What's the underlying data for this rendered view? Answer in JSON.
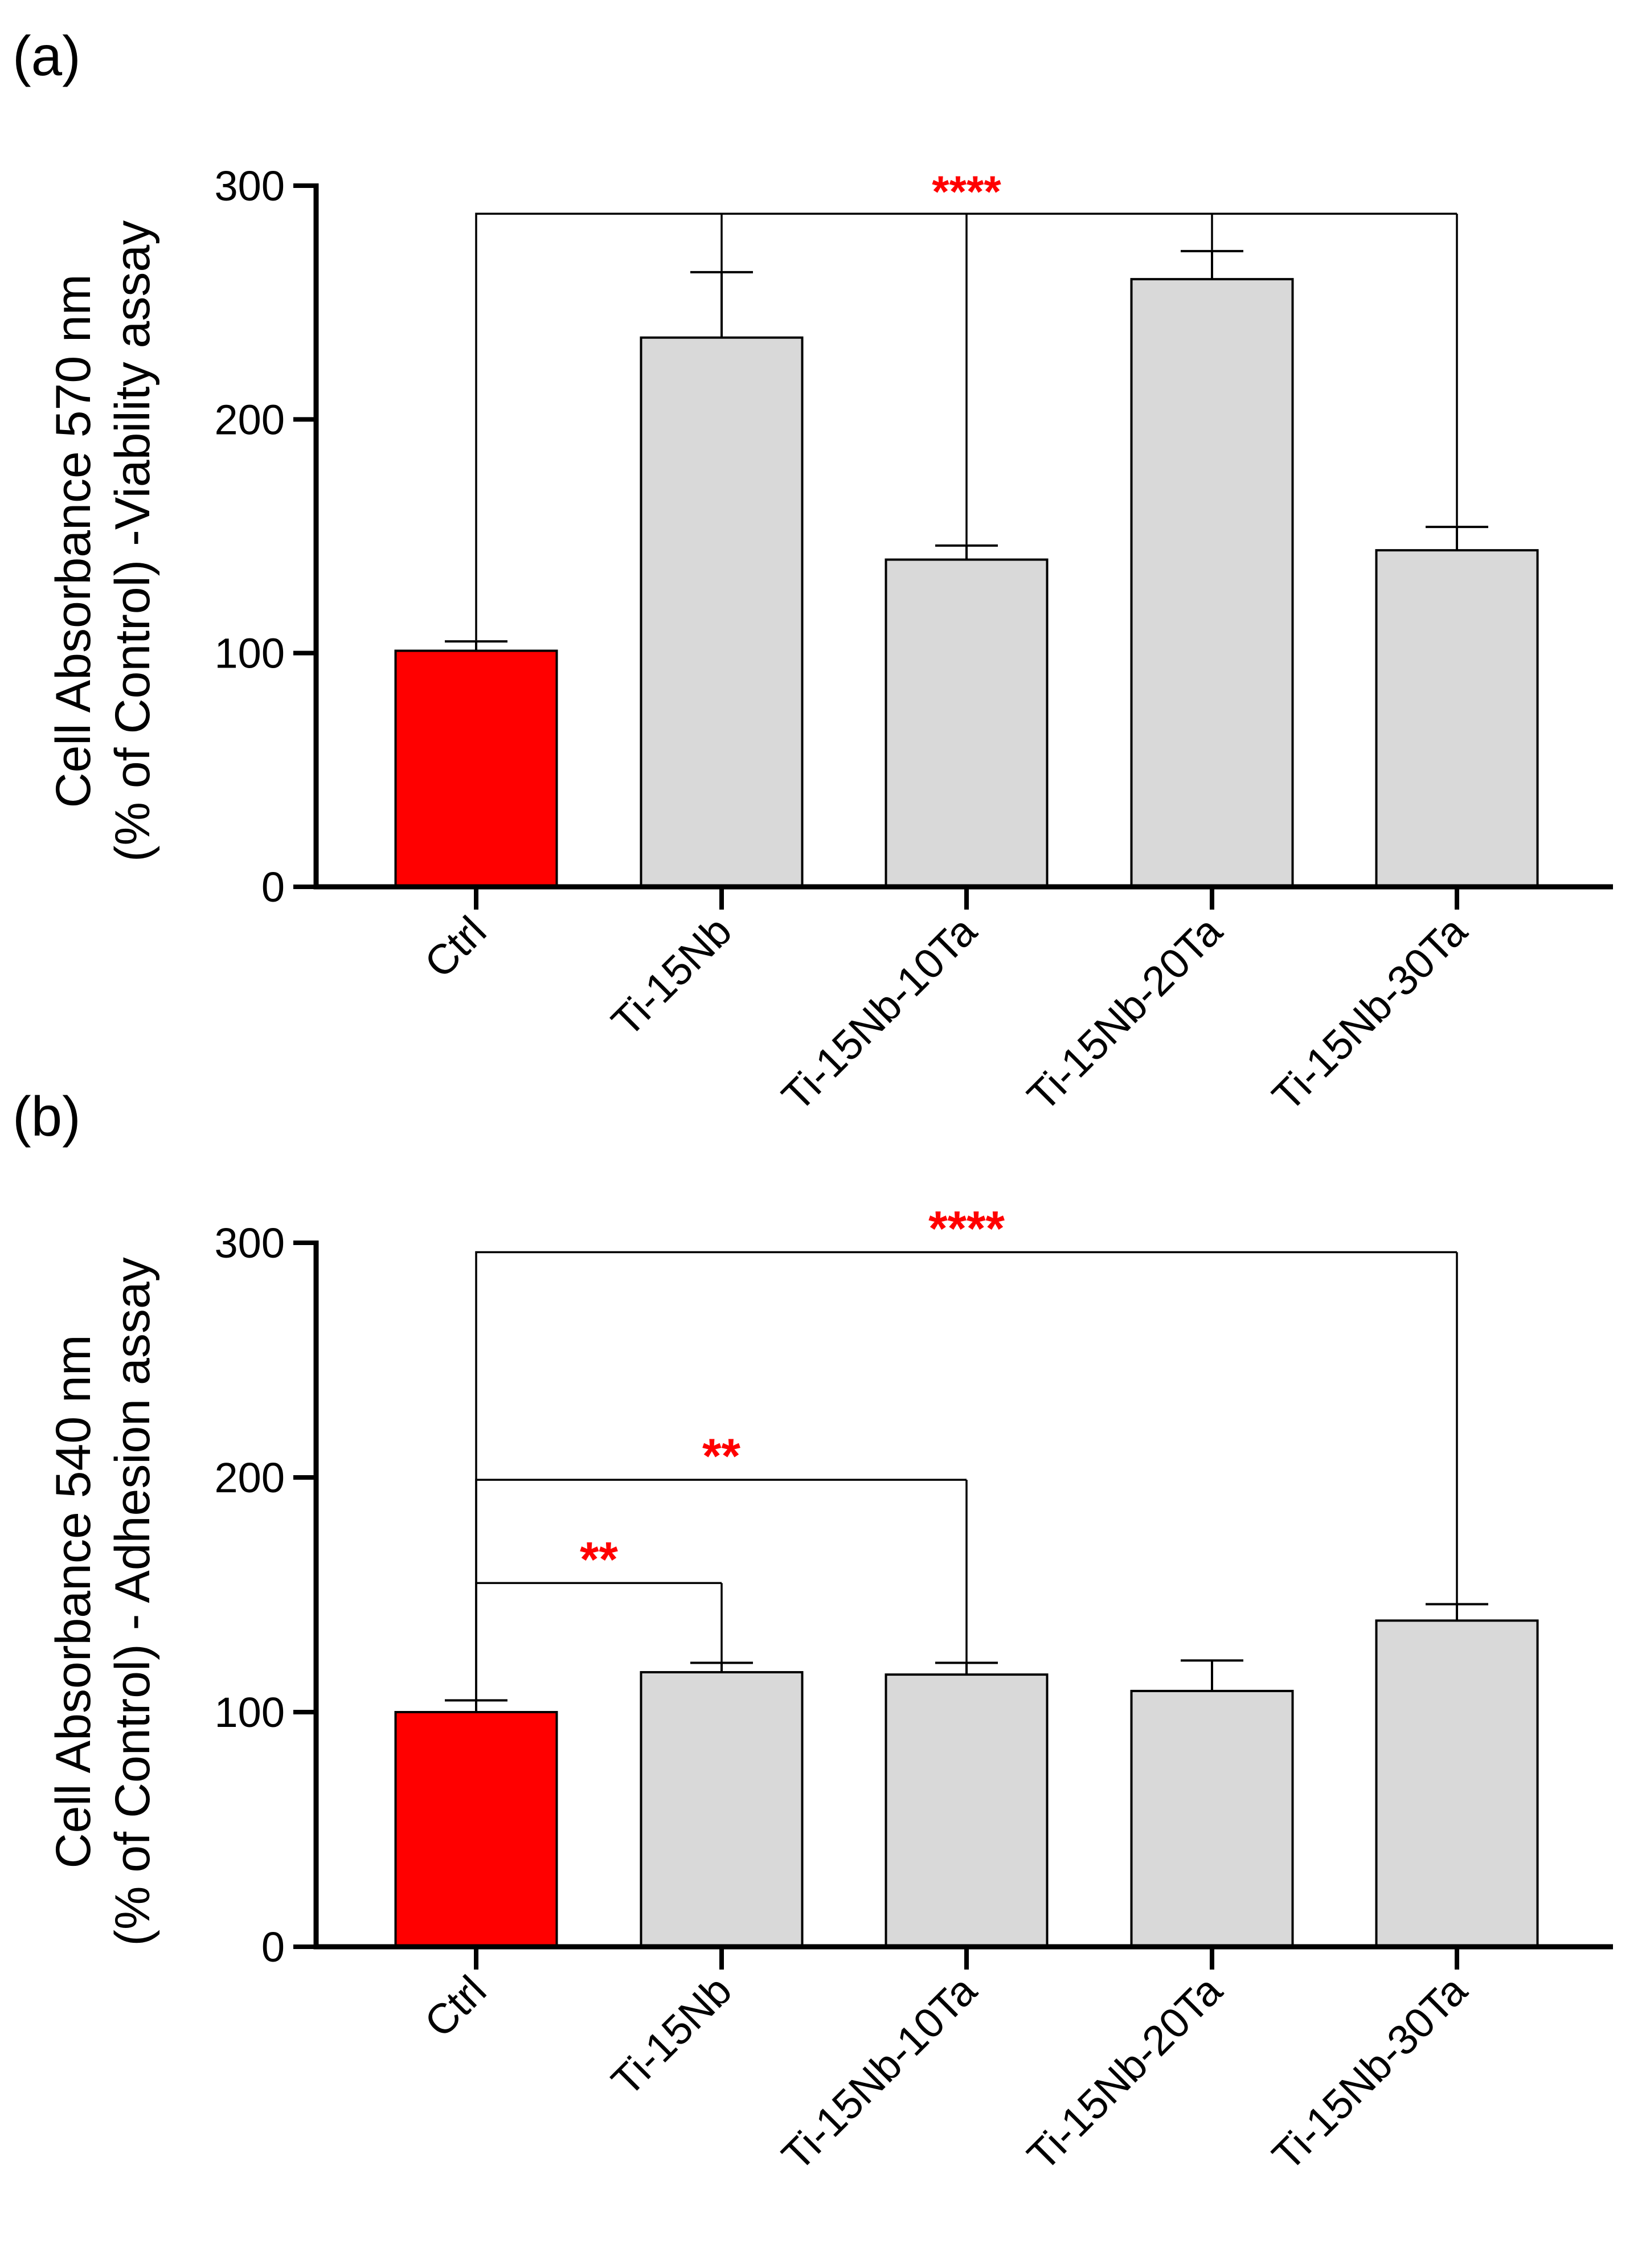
{
  "chart_data": [
    {
      "type": "bar",
      "panel_label": "(a)",
      "ylabel_line1": "Cell Absorbance 570 nm",
      "ylabel_line2": "(% of Control) -Viability assay",
      "ylim": [
        0,
        300
      ],
      "yticks": [
        "0",
        "100",
        "200",
        "300"
      ],
      "categories": [
        "Ctrl",
        "Ti-15Nb",
        "Ti-15Nb-10Ta",
        "Ti-15Nb-20Ta",
        "Ti-15Nb-30Ta"
      ],
      "values": [
        101,
        235,
        140,
        260,
        144
      ],
      "errors": [
        4,
        28,
        6,
        12,
        10
      ],
      "bar_colors": [
        "#ff0000",
        "#d9d9d9",
        "#d9d9d9",
        "#d9d9d9",
        "#d9d9d9"
      ],
      "significance": [
        {
          "label": "****",
          "from": 0,
          "to": [
            1,
            2,
            3,
            4
          ],
          "level": 288
        }
      ]
    },
    {
      "type": "bar",
      "panel_label": "(b)",
      "ylabel_line1": "Cell Absorbance 540 nm",
      "ylabel_line2": "(% of Control) - Adhesion assay",
      "ylim": [
        0,
        300
      ],
      "yticks": [
        "0",
        "100",
        "200",
        "300"
      ],
      "categories": [
        "Ctrl",
        "Ti-15Nb",
        "Ti-15Nb-10Ta",
        "Ti-15Nb-20Ta",
        "Ti-15Nb-30Ta"
      ],
      "values": [
        100,
        117,
        116,
        109,
        139
      ],
      "errors": [
        5,
        4,
        5,
        13,
        7
      ],
      "bar_colors": [
        "#ff0000",
        "#d9d9d9",
        "#d9d9d9",
        "#d9d9d9",
        "#d9d9d9"
      ],
      "significance": [
        {
          "label": "****",
          "from": 0,
          "to": [
            4
          ],
          "level": 296
        },
        {
          "label": "**",
          "from": 0,
          "to": [
            2
          ],
          "level": 199
        },
        {
          "label": "**",
          "from": 0,
          "to": [
            1
          ],
          "level": 155
        }
      ]
    }
  ]
}
